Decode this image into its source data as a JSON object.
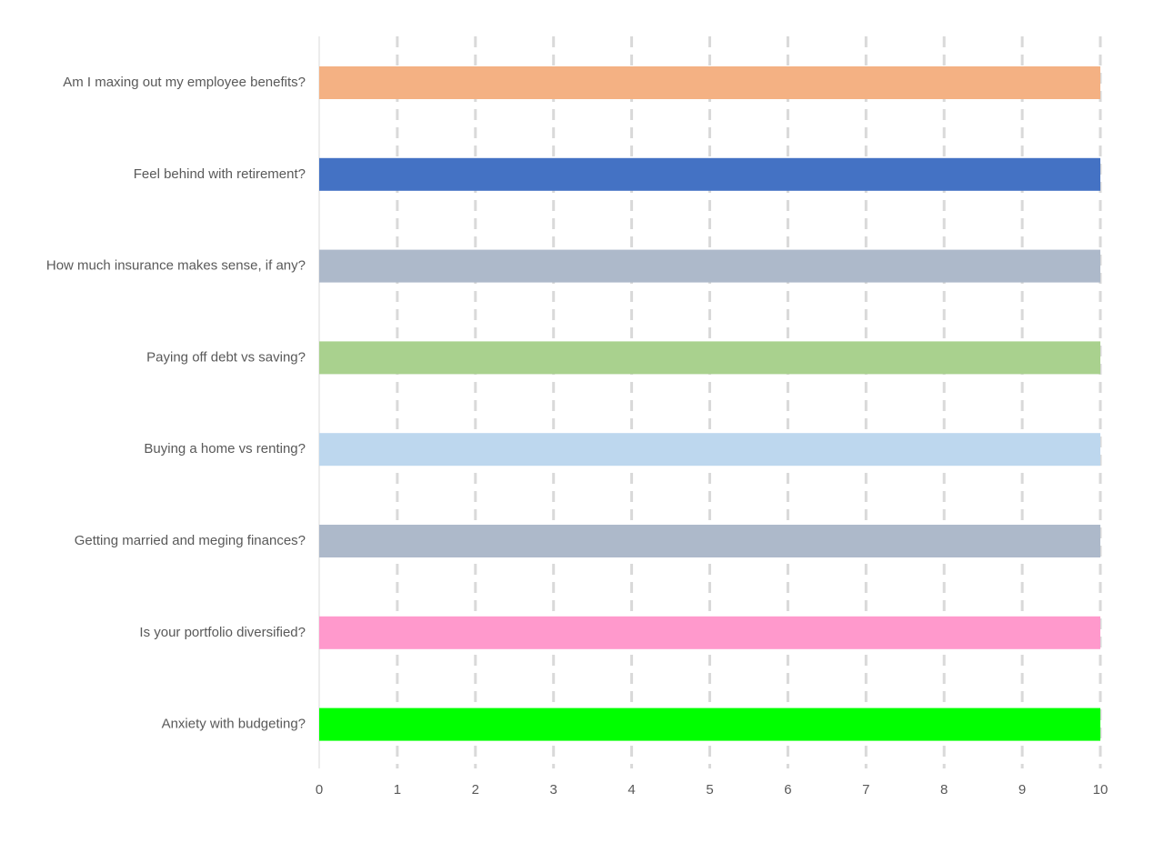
{
  "chart_data": {
    "type": "bar",
    "orientation": "horizontal",
    "title": "",
    "xlabel": "",
    "ylabel": "",
    "xlim": [
      0,
      10
    ],
    "xticks": [
      "0",
      "1",
      "2",
      "3",
      "4",
      "5",
      "6",
      "7",
      "8",
      "9",
      "10"
    ],
    "grid": "vertical dashed",
    "legend": "none",
    "categories": [
      "Am I maxing out my employee benefits?",
      "Feel behind with retirement?",
      "How much insurance makes sense, if any?",
      "Paying off debt vs saving?",
      "Buying a home vs renting?",
      "Getting married and meging finances?",
      "Is your portfolio diversified?",
      "Anxiety with budgeting?"
    ],
    "values": [
      10,
      10,
      10,
      10,
      10,
      10,
      10,
      10
    ],
    "colors": [
      "#f4b183",
      "#4472c4",
      "#adb9ca",
      "#a9d18e",
      "#bdd7ee",
      "#adb9ca",
      "#ff99cc",
      "#00ff00"
    ]
  }
}
